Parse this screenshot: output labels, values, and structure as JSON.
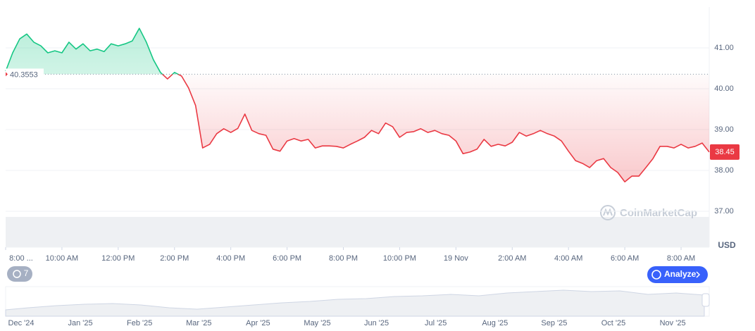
{
  "chart_data": {
    "type": "line",
    "x": [
      0,
      0.25,
      0.5,
      0.75,
      1,
      1.25,
      1.5,
      1.75,
      2,
      2.25,
      2.5,
      2.75,
      3,
      3.25,
      3.5,
      3.75,
      4,
      4.25,
      4.5,
      4.75,
      5,
      5.25,
      5.5,
      5.75,
      6,
      6.25,
      6.5,
      6.75,
      7,
      7.25,
      7.5,
      7.75,
      8,
      8.25,
      8.5,
      8.75,
      9,
      9.25,
      9.5,
      9.75,
      10,
      10.25,
      10.5,
      10.75,
      11,
      11.25,
      11.5,
      11.75,
      12,
      12.25,
      12.5,
      12.75,
      13,
      13.25,
      13.5,
      13.75,
      14,
      14.25,
      14.5,
      14.75,
      15,
      15.25,
      15.5,
      15.75,
      16,
      16.25,
      16.5,
      16.75,
      17,
      17.25,
      17.5,
      17.75,
      18,
      18.25,
      18.5,
      18.75,
      19,
      19.25,
      19.5,
      19.75,
      20,
      20.25,
      20.5,
      20.75,
      21,
      21.25,
      21.5,
      21.75,
      22,
      22.25,
      22.5,
      22.75,
      23,
      23.25,
      23.5,
      23.75,
      24,
      24.25,
      24.5,
      24.75,
      25
    ],
    "series": [
      {
        "values": [
          40.43,
          40.88,
          41.22,
          41.34,
          41.14,
          41.05,
          40.88,
          40.93,
          40.88,
          41.14,
          40.97,
          41.1,
          40.93,
          40.97,
          40.91,
          41.1,
          41.05,
          41.1,
          41.17,
          41.48,
          41.14,
          40.71,
          40.4,
          40.24,
          40.4,
          40.31,
          40.02,
          39.59,
          38.55,
          38.64,
          38.9,
          39.02,
          38.93,
          39.03,
          39.38,
          38.98,
          38.9,
          38.86,
          38.52,
          38.47,
          38.72,
          38.78,
          38.72,
          38.76,
          38.55,
          38.6,
          38.6,
          38.59,
          38.55,
          38.64,
          38.72,
          38.81,
          38.98,
          38.9,
          39.16,
          39.07,
          38.81,
          38.93,
          38.95,
          39.02,
          38.93,
          38.98,
          38.9,
          38.86,
          38.72,
          38.41,
          38.45,
          38.52,
          38.76,
          38.59,
          38.64,
          38.6,
          38.69,
          38.93,
          38.84,
          38.9,
          38.98,
          38.9,
          38.84,
          38.72,
          38.47,
          38.24,
          38.17,
          38.07,
          38.24,
          38.29,
          38.07,
          37.95,
          37.72,
          37.86,
          37.86,
          38.07,
          38.29,
          38.59,
          38.59,
          38.55,
          38.64,
          38.55,
          38.59,
          38.67,
          38.45
        ]
      }
    ],
    "baseline": 40.3553,
    "color_above": "#16c784",
    "color_below": "#ea3943",
    "xlim": [
      0,
      25
    ],
    "xticks": [
      {
        "value": 0,
        "label": "8:00 ..."
      },
      {
        "value": 2,
        "label": "10:00 AM"
      },
      {
        "value": 4,
        "label": "12:00 PM"
      },
      {
        "value": 6,
        "label": "2:00 PM"
      },
      {
        "value": 8,
        "label": "4:00 PM"
      },
      {
        "value": 10,
        "label": "6:00 PM"
      },
      {
        "value": 12,
        "label": "8:00 PM"
      },
      {
        "value": 14,
        "label": "10:00 PM"
      },
      {
        "value": 16,
        "label": "19 Nov"
      },
      {
        "value": 18,
        "label": "2:00 AM"
      },
      {
        "value": 20,
        "label": "4:00 AM"
      },
      {
        "value": 22,
        "label": "6:00 AM"
      },
      {
        "value": 24,
        "label": "8:00 AM"
      }
    ],
    "ylim": [
      37,
      42
    ],
    "yticks": [
      {
        "value": 37,
        "label": "37.00"
      },
      {
        "value": 38,
        "label": "38.00"
      },
      {
        "value": 39,
        "label": "39.00"
      },
      {
        "value": 40,
        "label": "40.00"
      },
      {
        "value": 41,
        "label": "41.00"
      }
    ],
    "grid": true,
    "y_unit": "USD",
    "watermark": "CoinMarketCap"
  },
  "controls": {
    "badge": "7",
    "button": "Analyze"
  },
  "navigator": {
    "labels": [
      "Dec '24",
      "Jan '25",
      "Feb '25",
      "Mar '25",
      "Apr '25",
      "May '25",
      "Jun '25",
      "Jul '25",
      "Aug '25",
      "Sep '25",
      "Oct '25",
      "Nov '25"
    ]
  }
}
